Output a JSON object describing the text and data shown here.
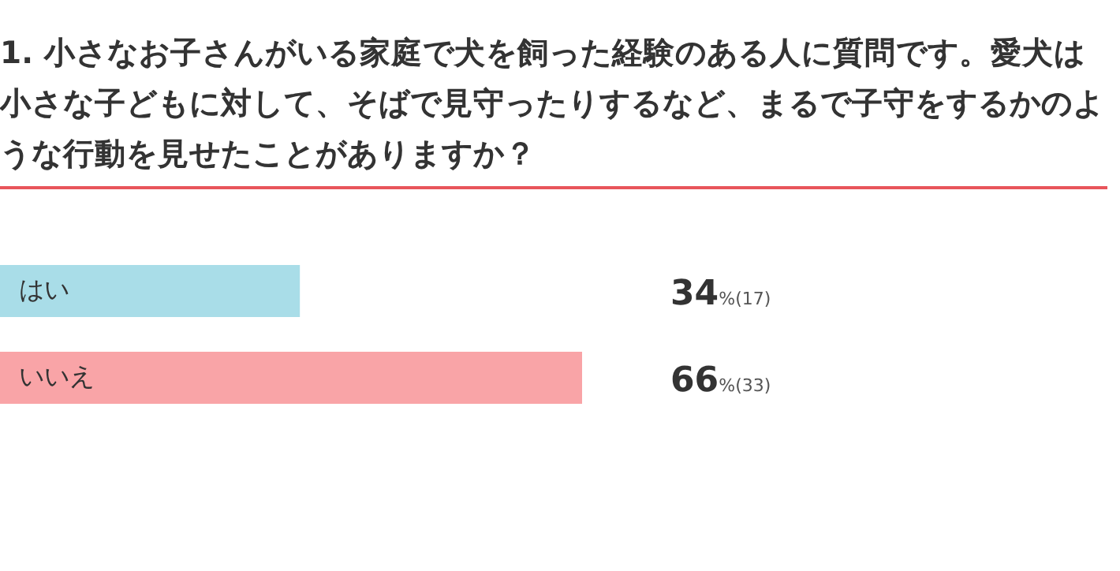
{
  "chart_data": {
    "type": "bar",
    "orientation": "horizontal",
    "title": "1. 小さなお子さんがいる家庭で犬を飼った経験のある人に質問です。愛犬は小さな子どもに対して、そばで見守ったりするなど、まるで子守をするかのような行動を見せたことがありますか？",
    "categories": [
      "はい",
      "いいえ"
    ],
    "values": [
      34,
      66
    ],
    "colors": [
      "#a9dde8",
      "#f9a4a7"
    ],
    "value_labels": [
      "34%(17)",
      "66%(33)"
    ]
  }
}
